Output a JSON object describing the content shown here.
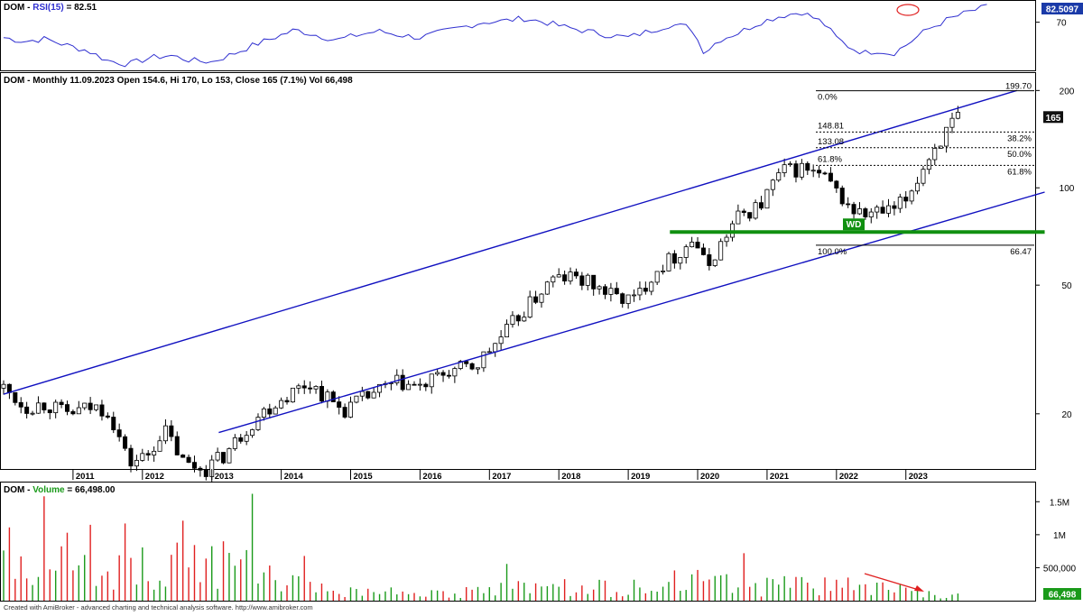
{
  "header": {
    "rsi_prefix": "DOM - ",
    "rsi_name": "RSI(15)",
    "rsi_suffix": " = 82.51",
    "price_title": "DOM - Monthly 11.09.2023 Open 154.6, Hi 170, Lo 153, Close 165 (7.1%) Vol 66,498",
    "vol_prefix": "DOM - ",
    "vol_name": "Volume",
    "vol_suffix": " = 66,498.00",
    "footer": "Created with AmiBroker - advanced charting and technical analysis software. http://www.amibroker.com"
  },
  "colors": {
    "up": "#1a9a1a",
    "down": "#e02020",
    "rsi_line": "#3030d0",
    "channel": "#1010c0",
    "support": "#109010",
    "badge_blue": "#1a3aa8",
    "badge_black": "#111111",
    "badge_green": "#109010",
    "annotation": "#e02020"
  },
  "chart_data": [
    {
      "type": "line",
      "title": "DOM - RSI(15) = 82.51",
      "series": [
        {
          "name": "RSI(15)",
          "last_value": 82.51
        }
      ],
      "y_ticks": [
        70
      ],
      "last_label": "82.5097",
      "points": [
        [
          2010.0,
          58
        ],
        [
          2010.3,
          55
        ],
        [
          2010.6,
          57
        ],
        [
          2010.9,
          52
        ],
        [
          2011.2,
          48
        ],
        [
          2011.5,
          40
        ],
        [
          2011.8,
          37
        ],
        [
          2012.1,
          42
        ],
        [
          2012.4,
          44
        ],
        [
          2012.7,
          40
        ],
        [
          2013.0,
          39
        ],
        [
          2013.3,
          45
        ],
        [
          2013.6,
          52
        ],
        [
          2013.9,
          58
        ],
        [
          2014.2,
          64
        ],
        [
          2014.5,
          60
        ],
        [
          2014.8,
          56
        ],
        [
          2015.1,
          60
        ],
        [
          2015.4,
          63
        ],
        [
          2015.7,
          60
        ],
        [
          2016.0,
          58
        ],
        [
          2016.3,
          62
        ],
        [
          2016.6,
          66
        ],
        [
          2016.9,
          70
        ],
        [
          2017.2,
          71
        ],
        [
          2017.5,
          73
        ],
        [
          2017.8,
          70
        ],
        [
          2018.1,
          66
        ],
        [
          2018.4,
          63
        ],
        [
          2018.7,
          60
        ],
        [
          2019.0,
          58
        ],
        [
          2019.3,
          63
        ],
        [
          2019.6,
          68
        ],
        [
          2019.9,
          66
        ],
        [
          2020.1,
          46
        ],
        [
          2020.3,
          56
        ],
        [
          2020.6,
          62
        ],
        [
          2020.9,
          70
        ],
        [
          2021.2,
          75
        ],
        [
          2021.5,
          78
        ],
        [
          2021.8,
          70
        ],
        [
          2022.0,
          58
        ],
        [
          2022.2,
          50
        ],
        [
          2022.4,
          46
        ],
        [
          2022.6,
          48
        ],
        [
          2022.8,
          45
        ],
        [
          2023.0,
          52
        ],
        [
          2023.3,
          64
        ],
        [
          2023.6,
          72
        ],
        [
          2023.9,
          78
        ],
        [
          2024.2,
          82.51
        ]
      ]
    },
    {
      "type": "candlestick",
      "title": "DOM - Monthly 11.09.2023 Open 154.6, Hi 170, Lo 153, Close 165 (7.1%) Vol 66,498",
      "y_scale": "log",
      "y_ticks": [
        20,
        50,
        100,
        200
      ],
      "last_label": "165",
      "x_ticks": [
        "2011",
        "2012",
        "2013",
        "2014",
        "2015",
        "2016",
        "2017",
        "2018",
        "2019",
        "2020",
        "2021",
        "2022",
        "2023"
      ],
      "ohlc_keypoints": [
        [
          2010.0,
          24
        ],
        [
          2010.3,
          21
        ],
        [
          2010.6,
          21.5
        ],
        [
          2010.9,
          20
        ],
        [
          2011.1,
          20.5
        ],
        [
          2011.3,
          21
        ],
        [
          2011.5,
          20.5
        ],
        [
          2011.8,
          14
        ],
        [
          2012.1,
          15
        ],
        [
          2012.3,
          18
        ],
        [
          2012.6,
          14
        ],
        [
          2012.9,
          13.5
        ],
        [
          2013.2,
          15
        ],
        [
          2013.4,
          17
        ],
        [
          2013.7,
          20
        ],
        [
          2014.1,
          23
        ],
        [
          2014.4,
          25
        ],
        [
          2014.7,
          22
        ],
        [
          2014.9,
          20.5
        ],
        [
          2015.3,
          23
        ],
        [
          2015.7,
          25
        ],
        [
          2016.0,
          24
        ],
        [
          2016.4,
          27
        ],
        [
          2016.8,
          28
        ],
        [
          2017.2,
          35
        ],
        [
          2017.6,
          44
        ],
        [
          2017.9,
          52
        ],
        [
          2018.2,
          53
        ],
        [
          2018.5,
          50
        ],
        [
          2018.8,
          46
        ],
        [
          2019.1,
          45
        ],
        [
          2019.4,
          56
        ],
        [
          2019.7,
          62
        ],
        [
          2019.95,
          70
        ],
        [
          2020.12,
          56
        ],
        [
          2020.3,
          65
        ],
        [
          2020.6,
          82
        ],
        [
          2020.9,
          88
        ],
        [
          2021.2,
          112
        ],
        [
          2021.5,
          115
        ],
        [
          2021.8,
          108
        ],
        [
          2022.0,
          97
        ],
        [
          2022.2,
          86
        ],
        [
          2022.4,
          82
        ],
        [
          2022.6,
          84
        ],
        [
          2022.8,
          84
        ],
        [
          2023.0,
          92
        ],
        [
          2023.2,
          110
        ],
        [
          2023.4,
          132
        ],
        [
          2023.6,
          150
        ],
        [
          2023.75,
          165
        ]
      ],
      "trend_channel": {
        "upper": [
          [
            2010.0,
            23
          ],
          [
            2024.6,
            200
          ]
        ],
        "lower": [
          [
            2013.1,
            17.5
          ],
          [
            2025.0,
            97
          ]
        ]
      },
      "support_line": {
        "value": 73,
        "from": 2019.6,
        "to": 2025.0,
        "label": "WD"
      },
      "fibonacci": {
        "levels": [
          {
            "pct": "0.0%",
            "value": 199.7,
            "right_label": "199.70"
          },
          {
            "pct": "148.81",
            "value": 148.81,
            "right_label": "38.2%"
          },
          {
            "pct": "133.08",
            "value": 133.08,
            "right_label": "50.0%"
          },
          {
            "pct": "61.8%",
            "value": 117.36,
            "right_label": "61.8%"
          },
          {
            "pct": "100.0%",
            "value": 66.47,
            "right_label": "66.47"
          }
        ]
      }
    },
    {
      "type": "bar",
      "title": "DOM - Volume = 66,498.00",
      "y_ticks": [
        "1.5M",
        "1M",
        "500,000"
      ],
      "last_label": "66,498",
      "last_value": 66498
    }
  ]
}
